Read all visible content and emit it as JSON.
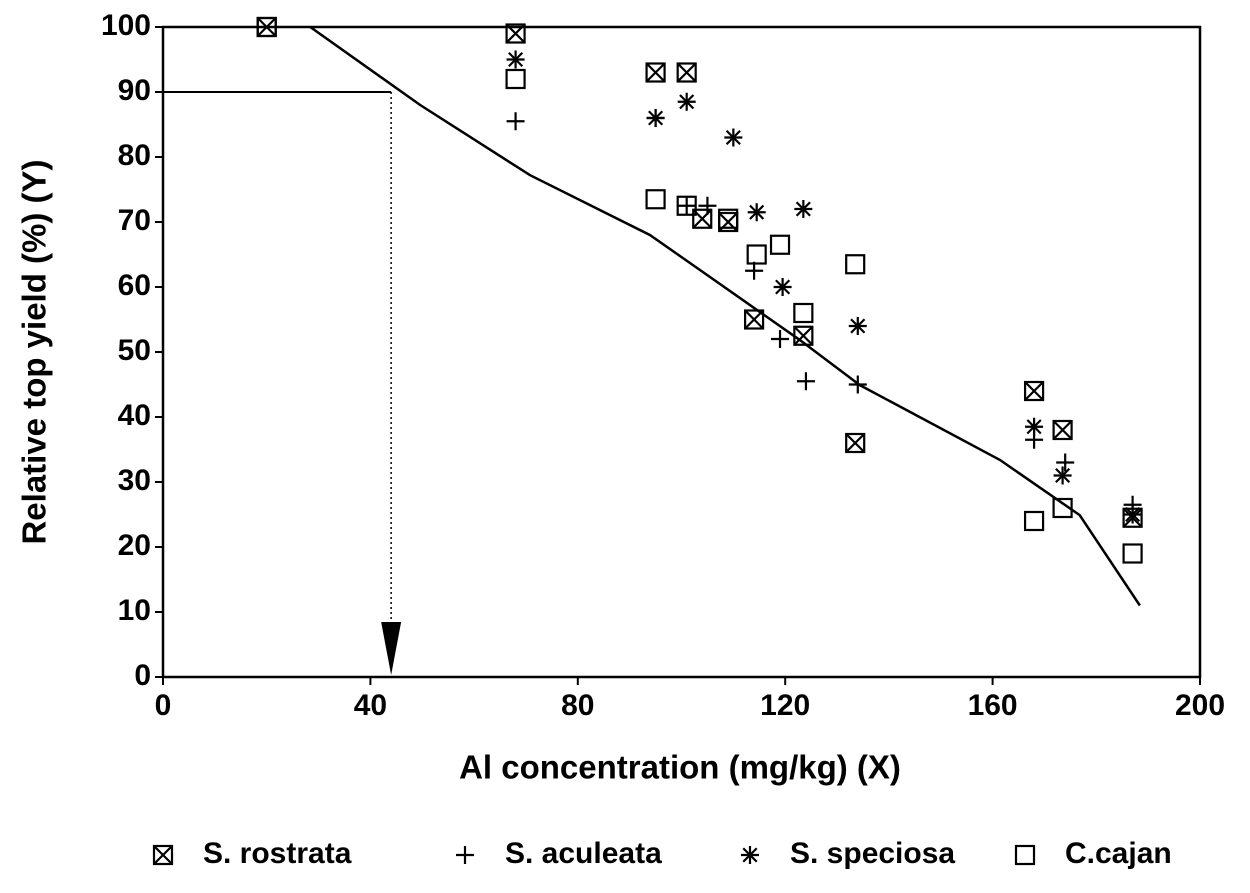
{
  "chart_data": {
    "type": "scatter",
    "x_label": "Al concentration (mg/kg) (X)",
    "y_label": "Relative top yield (%) (Y)",
    "xlim": [
      0,
      200
    ],
    "xticks": [
      0,
      40,
      80,
      120,
      160,
      200
    ],
    "ylim": [
      0,
      100
    ],
    "yticks": [
      0,
      10,
      20,
      30,
      40,
      50,
      60,
      70,
      80,
      90,
      100
    ],
    "series": [
      {
        "name": "S. rostrata",
        "marker": "boxx",
        "color": "#000000",
        "x": [
          20,
          68,
          95,
          101,
          104,
          109,
          114,
          123.5,
          133.5,
          168,
          173.5,
          187
        ],
        "values": [
          100,
          99,
          93,
          93,
          70.5,
          70,
          55,
          52.5,
          36,
          44,
          38,
          24.5
        ]
      },
      {
        "name": "S. aculeata",
        "marker": "plus",
        "color": "#000000",
        "x": [
          68,
          95,
          101,
          105,
          114,
          119,
          124,
          134,
          168,
          174,
          187
        ],
        "values": [
          85.5,
          86,
          72.5,
          72.5,
          62.5,
          52,
          45.5,
          45,
          36.5,
          33,
          26.5
        ]
      },
      {
        "name": "S. speciosa",
        "marker": "star",
        "color": "#000000",
        "x": [
          68,
          95,
          101,
          110,
          114.5,
          123.5,
          119.5,
          134,
          168,
          173.5,
          187
        ],
        "values": [
          95,
          86,
          88.5,
          83,
          71.5,
          72,
          60,
          54,
          38.5,
          31,
          25
        ]
      },
      {
        "name": "C.cajan",
        "marker": "box",
        "color": "#000000",
        "x": [
          20,
          68,
          95,
          101,
          109,
          114.5,
          119,
          123.5,
          133.5,
          168,
          173.5,
          187
        ],
        "values": [
          100,
          92,
          73.5,
          72.5,
          70.5,
          65,
          66.5,
          56,
          63.5,
          24,
          26,
          19
        ]
      }
    ],
    "fit_line": {
      "color": "#000000",
      "x": [
        28.4,
        49.6,
        70.8,
        93.9,
        103.6,
        122.9,
        134.4,
        161.4,
        176.8,
        188.4
      ],
      "y": [
        100,
        88,
        77.2,
        68,
        62.6,
        51.8,
        44.9,
        33.4,
        24.9,
        11
      ]
    },
    "threshold": {
      "x": 44,
      "y": 90
    }
  }
}
